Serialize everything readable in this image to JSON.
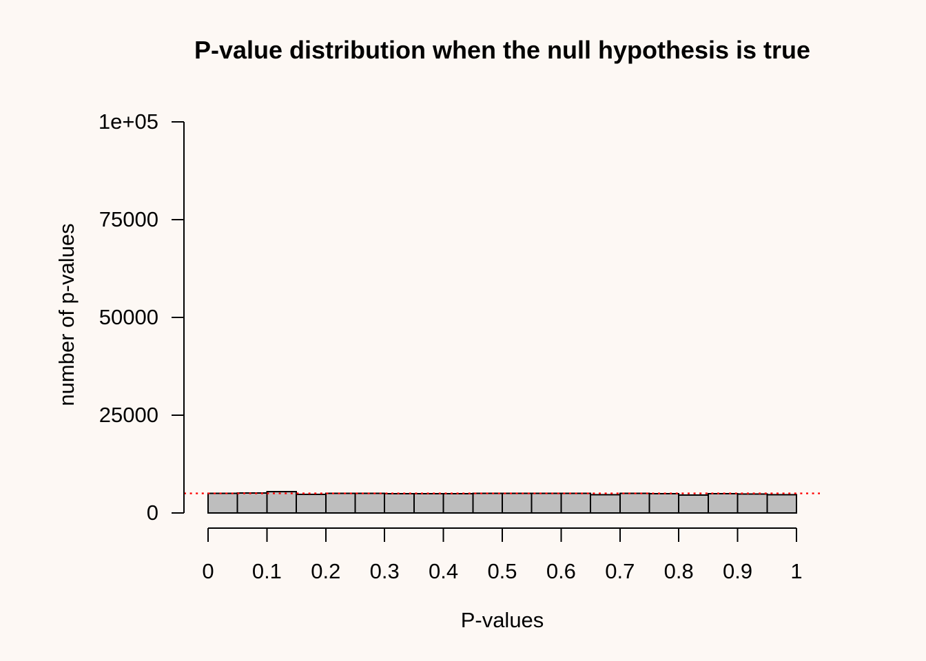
{
  "figure": {
    "background_color": "#fdf8f4",
    "text_color": "#000000"
  },
  "chart_data": {
    "type": "bar",
    "subtype": "histogram",
    "title": "P-value distribution when the null hypothesis is true",
    "xlabel": "P-values",
    "ylabel": "number of p-values",
    "xlim": [
      0,
      1
    ],
    "ylim": [
      0,
      100000
    ],
    "grid": false,
    "legend": false,
    "bin_start": 0,
    "bin_width": 0.05,
    "values": [
      5000,
      5080,
      5420,
      4780,
      4990,
      4980,
      4900,
      4890,
      4970,
      5050,
      5060,
      4980,
      5040,
      4700,
      4980,
      4960,
      4550,
      4890,
      4870,
      4700
    ],
    "bar_fill_color": "#bebebe",
    "bar_border_color": "#000000",
    "axis_color": "#000000",
    "xticks": {
      "values": [
        0,
        0.1,
        0.2,
        0.3,
        0.4,
        0.5,
        0.6,
        0.7,
        0.8,
        0.9,
        1
      ],
      "labels": [
        "0",
        "0.1",
        "0.2",
        "0.3",
        "0.4",
        "0.5",
        "0.6",
        "0.7",
        "0.8",
        "0.9",
        "1"
      ]
    },
    "yticks": {
      "values": [
        0,
        25000,
        50000,
        75000,
        100000
      ],
      "labels": [
        "0",
        "25000",
        "50000",
        "75000",
        "1e+05"
      ]
    },
    "reference_line": {
      "value": 5000,
      "color": "#ff0000",
      "style": "dotted"
    }
  }
}
